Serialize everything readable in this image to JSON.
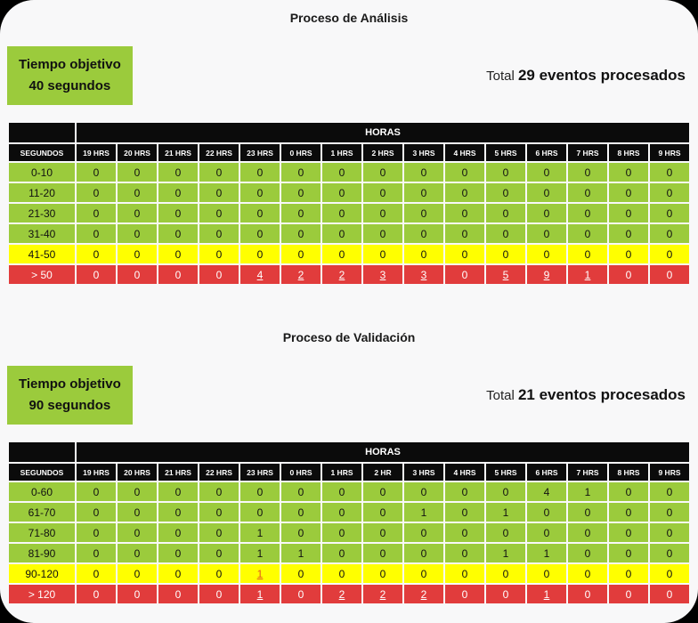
{
  "colors": {
    "green": "#9BCB3C",
    "yellow": "#FFFF00",
    "red": "#E13C3C",
    "header_bg": "#0B0B0B",
    "link_on_yellow": "#E25822",
    "card_background": "#F8F8F9",
    "page_background": "#000000"
  },
  "sections": [
    {
      "title": "Proceso de Análisis",
      "objective": {
        "line1": "Tiempo objetivo",
        "line2": "40 segundos"
      },
      "total": {
        "prefix": "Total",
        "value": "29 eventos procesados"
      },
      "table": {
        "group_header": "HORAS",
        "corner_header": "SEGUNDOS",
        "hours": [
          "19 HRS",
          "20 HRS",
          "21 HRS",
          "22 HRS",
          "23 HRS",
          "0 HRS",
          "1 HRS",
          "2 HRS",
          "3 HRS",
          "4 HRS",
          "5 HRS",
          "6 HRS",
          "7 HRS",
          "8 HRS",
          "9 HRS"
        ],
        "rows": [
          {
            "label": "0-10",
            "color": "green",
            "values": [
              0,
              0,
              0,
              0,
              0,
              0,
              0,
              0,
              0,
              0,
              0,
              0,
              0,
              0,
              0
            ]
          },
          {
            "label": "11-20",
            "color": "green",
            "values": [
              0,
              0,
              0,
              0,
              0,
              0,
              0,
              0,
              0,
              0,
              0,
              0,
              0,
              0,
              0
            ]
          },
          {
            "label": "21-30",
            "color": "green",
            "values": [
              0,
              0,
              0,
              0,
              0,
              0,
              0,
              0,
              0,
              0,
              0,
              0,
              0,
              0,
              0
            ]
          },
          {
            "label": "31-40",
            "color": "green",
            "values": [
              0,
              0,
              0,
              0,
              0,
              0,
              0,
              0,
              0,
              0,
              0,
              0,
              0,
              0,
              0
            ]
          },
          {
            "label": "41-50",
            "color": "yellow",
            "values": [
              0,
              0,
              0,
              0,
              0,
              0,
              0,
              0,
              0,
              0,
              0,
              0,
              0,
              0,
              0
            ]
          },
          {
            "label": "> 50",
            "color": "red",
            "values": [
              0,
              0,
              0,
              0,
              4,
              2,
              2,
              3,
              3,
              0,
              5,
              9,
              1,
              0,
              0
            ]
          }
        ]
      }
    },
    {
      "title": "Proceso de Validación",
      "objective": {
        "line1": "Tiempo objetivo",
        "line2": "90 segundos"
      },
      "total": {
        "prefix": "Total",
        "value": "21 eventos procesados"
      },
      "table": {
        "group_header": "HORAS",
        "corner_header": "SEGUNDOS",
        "hours": [
          "19 HRS",
          "20 HRS",
          "21 HRS",
          "22 HRS",
          "23 HRS",
          "0 HRS",
          "1 HRS",
          "2 HR",
          "3 HRS",
          "4 HRS",
          "5 HRS",
          "6 HRS",
          "7 HRS",
          "8 HRS",
          "9 HRS"
        ],
        "rows": [
          {
            "label": "0-60",
            "color": "green",
            "values": [
              0,
              0,
              0,
              0,
              0,
              0,
              0,
              0,
              0,
              0,
              0,
              4,
              1,
              0,
              0
            ]
          },
          {
            "label": "61-70",
            "color": "green",
            "values": [
              0,
              0,
              0,
              0,
              0,
              0,
              0,
              0,
              1,
              0,
              1,
              0,
              0,
              0,
              0
            ]
          },
          {
            "label": "71-80",
            "color": "green",
            "values": [
              0,
              0,
              0,
              0,
              1,
              0,
              0,
              0,
              0,
              0,
              0,
              0,
              0,
              0,
              0
            ]
          },
          {
            "label": "81-90",
            "color": "green",
            "values": [
              0,
              0,
              0,
              0,
              1,
              1,
              0,
              0,
              0,
              0,
              1,
              1,
              0,
              0,
              0
            ]
          },
          {
            "label": "90-120",
            "color": "yellow",
            "values": [
              0,
              0,
              0,
              0,
              1,
              0,
              0,
              0,
              0,
              0,
              0,
              0,
              0,
              0,
              0
            ]
          },
          {
            "label": "> 120",
            "color": "red",
            "values": [
              0,
              0,
              0,
              0,
              1,
              0,
              2,
              2,
              2,
              0,
              0,
              1,
              0,
              0,
              0
            ]
          }
        ]
      }
    }
  ]
}
